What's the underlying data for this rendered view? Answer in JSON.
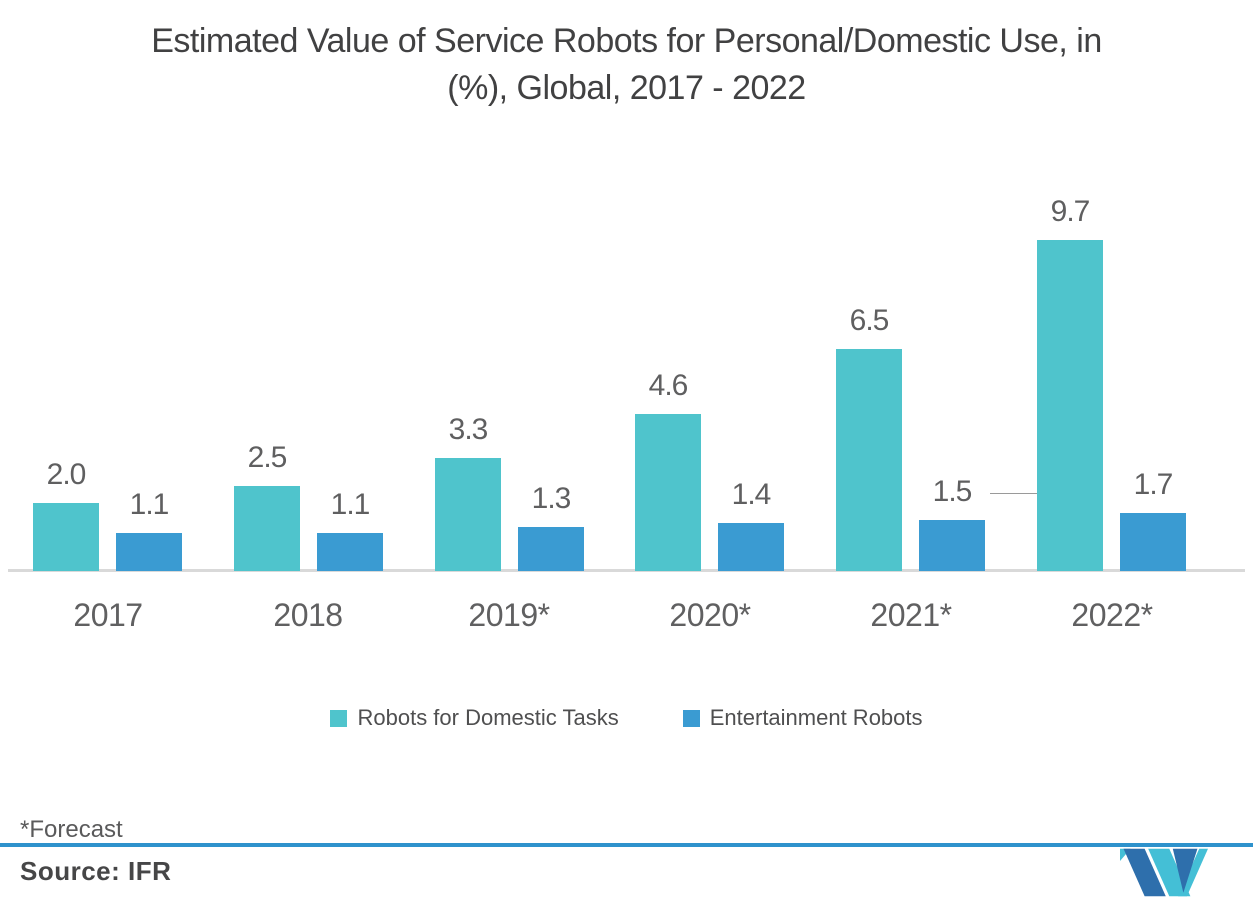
{
  "title_lines": [
    "Estimated Value of Service Robots for Personal/Domestic Use, in",
    "(%), Global, 2017 - 2022"
  ],
  "chart_data": {
    "type": "bar",
    "title": "Estimated Value of Service Robots for Personal/Domestic Use, in (%), Global, 2017 - 2022",
    "categories": [
      "2017",
      "2018",
      "2019*",
      "2020*",
      "2021*",
      "2022*"
    ],
    "series": [
      {
        "name": "Robots for Domestic Tasks",
        "color": "#4FC4CC",
        "values": [
          2.0,
          2.5,
          3.3,
          4.6,
          6.5,
          9.7
        ],
        "labels": [
          "2.0",
          "2.5",
          "3.3",
          "4.6",
          "6.5",
          "9.7"
        ]
      },
      {
        "name": "Entertainment Robots",
        "color": "#3A9BD2",
        "values": [
          1.1,
          1.1,
          1.3,
          1.4,
          1.5,
          1.7
        ],
        "labels": [
          "1.1",
          "1.1",
          "1.3",
          "1.4",
          "1.5",
          "1.7"
        ]
      }
    ],
    "xlabel": "",
    "ylabel": "",
    "ylim": [
      0,
      10.5
    ],
    "grid": false,
    "legend_position": "bottom",
    "label_connectors": [
      {
        "series": 1,
        "index": 4
      }
    ]
  },
  "footnote": "*Forecast",
  "source": "Source: IFR",
  "colors": {
    "domestic_bar": "#4FC4CC",
    "entertainment_bar": "#3A9BD2",
    "title_text": "#414142",
    "label_text": "#5F5F60",
    "axis_line": "#D9D9D9",
    "divider_line": "#2E92CC",
    "logo_navy": "#2E6FAC",
    "logo_teal": "#44BFD6"
  },
  "logo_name": "mordor-intelligence-logo"
}
